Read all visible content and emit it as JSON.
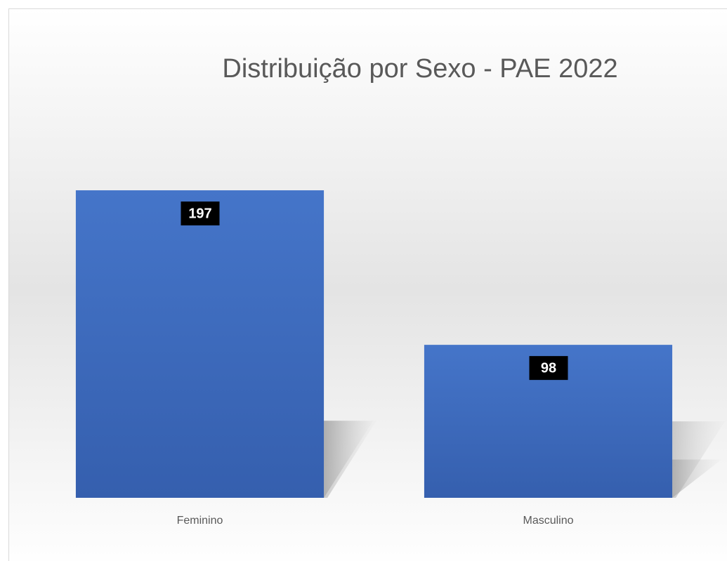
{
  "chart_data": {
    "type": "bar",
    "title": "Distribuição por Sexo - PAE 2022",
    "categories": [
      "Feminino",
      "Masculino"
    ],
    "values": [
      197,
      98
    ],
    "color": "#4472c4",
    "ylim": [
      0,
      250
    ]
  }
}
